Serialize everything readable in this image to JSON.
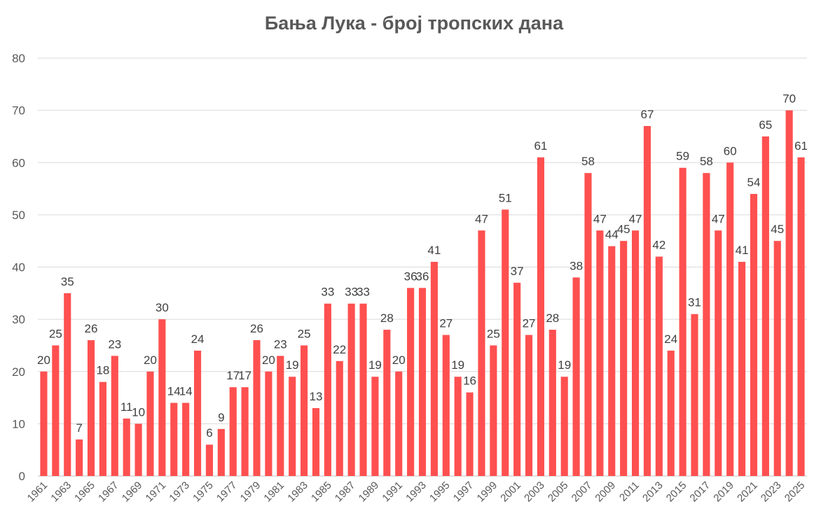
{
  "chart_data": {
    "type": "bar",
    "title": "Бања Лука - број тропских дана",
    "xlabel": "",
    "ylabel": "",
    "ylim": [
      0,
      80
    ],
    "yticks": [
      0,
      10,
      20,
      30,
      40,
      50,
      60,
      70,
      80
    ],
    "grid": true,
    "legend": "none",
    "bar_color": "#FF5050",
    "categories": [
      "1961",
      "1962",
      "1963",
      "1964",
      "1965",
      "1966",
      "1967",
      "1968",
      "1969",
      "1970",
      "1971",
      "1972",
      "1973",
      "1974",
      "1975",
      "1976",
      "1977",
      "1978",
      "1979",
      "1980",
      "1981",
      "1982",
      "1983",
      "1984",
      "1985",
      "1986",
      "1987",
      "1988",
      "1989",
      "1990",
      "1991",
      "1992",
      "1993",
      "1994",
      "1995",
      "1996",
      "1997",
      "1998",
      "1999",
      "2000",
      "2001",
      "2002",
      "2003",
      "2004",
      "2005",
      "2006",
      "2007",
      "2008",
      "2009",
      "2010",
      "2011",
      "2012",
      "2013",
      "2014",
      "2015",
      "2016",
      "2017",
      "2018",
      "2019",
      "2020",
      "2021",
      "2022",
      "2023",
      "2024",
      "2025"
    ],
    "x_tick_labels": [
      "1961",
      "1963",
      "1965",
      "1967",
      "1969",
      "1971",
      "1973",
      "1975",
      "1977",
      "1979",
      "1981",
      "1983",
      "1985",
      "1987",
      "1989",
      "1991",
      "1993",
      "1995",
      "1997",
      "1999",
      "2001",
      "2003",
      "2005",
      "2007",
      "2009",
      "2011",
      "2013",
      "2015",
      "2017",
      "2019",
      "2021",
      "2023",
      "2025"
    ],
    "values": [
      20,
      25,
      35,
      7,
      26,
      18,
      23,
      11,
      10,
      20,
      30,
      14,
      14,
      24,
      6,
      9,
      17,
      17,
      26,
      20,
      23,
      19,
      25,
      13,
      33,
      22,
      33,
      33,
      19,
      28,
      20,
      36,
      36,
      41,
      27,
      19,
      16,
      47,
      25,
      51,
      37,
      27,
      61,
      28,
      19,
      38,
      58,
      47,
      44,
      45,
      47,
      67,
      42,
      24,
      59,
      31,
      58,
      47,
      60,
      41,
      54,
      65,
      45,
      70,
      61
    ]
  }
}
